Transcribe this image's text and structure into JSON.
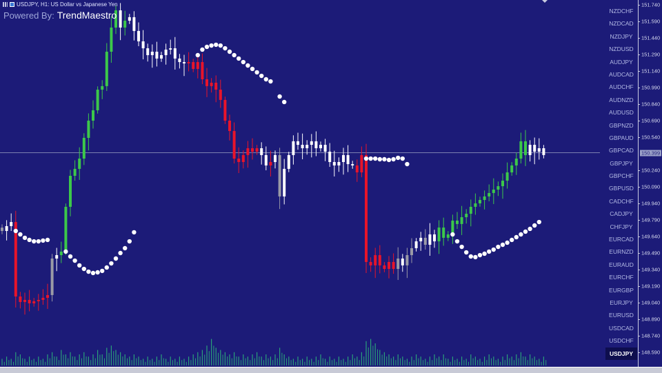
{
  "header": {
    "title": "USDJPY, H1:  US Dollar vs Japanese Yen",
    "powered_label": "Powered By:",
    "brand": "TrendMaestro"
  },
  "colors": {
    "background": "#1c1b78",
    "bull": "#3cc84a",
    "bear": "#e8142a",
    "neutral": "#ffffff",
    "gray": "#9a9aa6",
    "dots": "#ffffff",
    "volume": "#2aa07a"
  },
  "symbols": [
    "NZDCHF",
    "NZDCAD",
    "NZDJPY",
    "NZDUSD",
    "AUDJPY",
    "AUDCAD",
    "AUDCHF",
    "AUDNZD",
    "AUDUSD",
    "GBPNZD",
    "GBPAUD",
    "GBPCAD",
    "GBPJPY",
    "GBPCHF",
    "GBPUSD",
    "CADCHF",
    "CADJPY",
    "CHFJPY",
    "EURCAD",
    "EURNZD",
    "EURAUD",
    "EURCHF",
    "EURGBP",
    "EURJPY",
    "EURUSD",
    "USDCAD",
    "USDCHF",
    "USDJPY"
  ],
  "selected_symbol": "USDJPY",
  "price_axis": [
    "151.740",
    "151.590",
    "151.440",
    "151.290",
    "151.140",
    "150.990",
    "150.840",
    "150.690",
    "150.540",
    "150.240",
    "150.090",
    "149.940",
    "149.790",
    "149.640",
    "149.490",
    "149.340",
    "149.190",
    "149.040",
    "148.890",
    "148.740",
    "148.590"
  ],
  "current_price": "150.399",
  "chart_data": {
    "type": "candlestick",
    "ylim": [
      148.55,
      151.78
    ],
    "current_price": 150.399,
    "closes": [
      149.69,
      149.734,
      149.771,
      149.096,
      149.046,
      149.065,
      149.034,
      149.053,
      149.065,
      149.084,
      149.109,
      149.44,
      149.471,
      149.503,
      149.909,
      150.19,
      150.253,
      150.346,
      150.534,
      150.69,
      150.784,
      150.971,
      151.003,
      151.315,
      151.534,
      151.69,
      151.534,
      151.596,
      151.628,
      151.503,
      151.409,
      151.346,
      151.284,
      151.315,
      151.253,
      151.284,
      151.334,
      151.346,
      151.253,
      151.221,
      151.209,
      151.221,
      151.159,
      151.221,
      151.065,
      151.003,
      151.034,
      150.971,
      150.878,
      150.69,
      150.596,
      150.346,
      150.315,
      150.378,
      150.44,
      150.409,
      150.44,
      150.378,
      150.284,
      150.315,
      150.378,
      150.003,
      150.253,
      150.378,
      150.503,
      150.471,
      150.44,
      150.471,
      150.503,
      150.44,
      150.471,
      150.409,
      150.315,
      150.284,
      150.315,
      150.378,
      150.296,
      150.284,
      150.221,
      150.378,
      149.409,
      149.378,
      149.471,
      149.378,
      149.346,
      149.409,
      149.346,
      149.44,
      149.378,
      149.471,
      149.534,
      149.596,
      149.628,
      149.565,
      149.659,
      149.596,
      149.721,
      149.628,
      149.659,
      149.784,
      149.753,
      149.815,
      149.846,
      149.909,
      149.94,
      149.971,
      150.003,
      150.034,
      150.065,
      150.096,
      150.146,
      150.221,
      150.284,
      150.346,
      150.503,
      150.378,
      150.471,
      150.409,
      150.44,
      150.378
    ],
    "candle_types": "swwrrrrrrrrswgggggggggggggwgwwwwwwwwwwwwwrrrrrrrrrrrrrrrrwwrwswwwwwwwwwwwwwwwwrrrrrrrrrswsswwswwgggggggggggggggggggg",
    "indicator_dots": [
      {
        "start": 3,
        "values": [
          149.69,
          149.659,
          149.628,
          149.609,
          149.596,
          149.596,
          149.603,
          149.609
        ]
      },
      {
        "start": 14,
        "values": [
          149.503,
          149.459,
          149.421,
          149.378,
          149.346,
          149.321,
          149.309,
          149.315,
          149.328,
          149.359,
          149.396,
          149.44,
          149.49,
          149.534,
          149.596,
          149.678
        ]
      },
      {
        "start": 43,
        "values": [
          151.284,
          151.334,
          151.359,
          151.371,
          151.378,
          151.371,
          151.346,
          151.315,
          151.284,
          151.253,
          151.221,
          151.19,
          151.159,
          151.128,
          151.096,
          151.065,
          151.046
        ]
      },
      {
        "start": 61,
        "values": [
          150.909,
          150.859
        ]
      },
      {
        "start": 80,
        "values": [
          150.346,
          150.346,
          150.346,
          150.34,
          150.34,
          150.334,
          150.34,
          150.353,
          150.346,
          150.296
        ]
      },
      {
        "start": 99,
        "values": [
          149.659,
          149.596,
          149.546,
          149.496,
          149.459,
          149.453,
          149.471,
          149.484,
          149.503,
          149.521,
          149.546,
          149.565,
          149.584,
          149.609,
          149.634,
          149.659,
          149.684,
          149.709,
          149.74,
          149.771
        ]
      }
    ],
    "volume": [
      3,
      4,
      3,
      6,
      5,
      3,
      4,
      3,
      4,
      3,
      5,
      6,
      4,
      7,
      5,
      6,
      4,
      5,
      6,
      4,
      5,
      7,
      5,
      8,
      9,
      7,
      6,
      5,
      4,
      5,
      4,
      3,
      4,
      3,
      4,
      5,
      3,
      4,
      3,
      4,
      3,
      4,
      5,
      6,
      7,
      9,
      12,
      8,
      7,
      6,
      5,
      6,
      4,
      5,
      4,
      5,
      6,
      4,
      5,
      4,
      5,
      8,
      5,
      4,
      3,
      4,
      3,
      4,
      3,
      4,
      5,
      3,
      4,
      3,
      4,
      3,
      4,
      5,
      4,
      6,
      11,
      12,
      10,
      7,
      6,
      5,
      4,
      5,
      4,
      3,
      4,
      5,
      4,
      3,
      4,
      5,
      4,
      5,
      3,
      4,
      3,
      4,
      3,
      5,
      4,
      3,
      4,
      5,
      4,
      3,
      4,
      5,
      4,
      5,
      6,
      4,
      5,
      4,
      3,
      4
    ]
  }
}
